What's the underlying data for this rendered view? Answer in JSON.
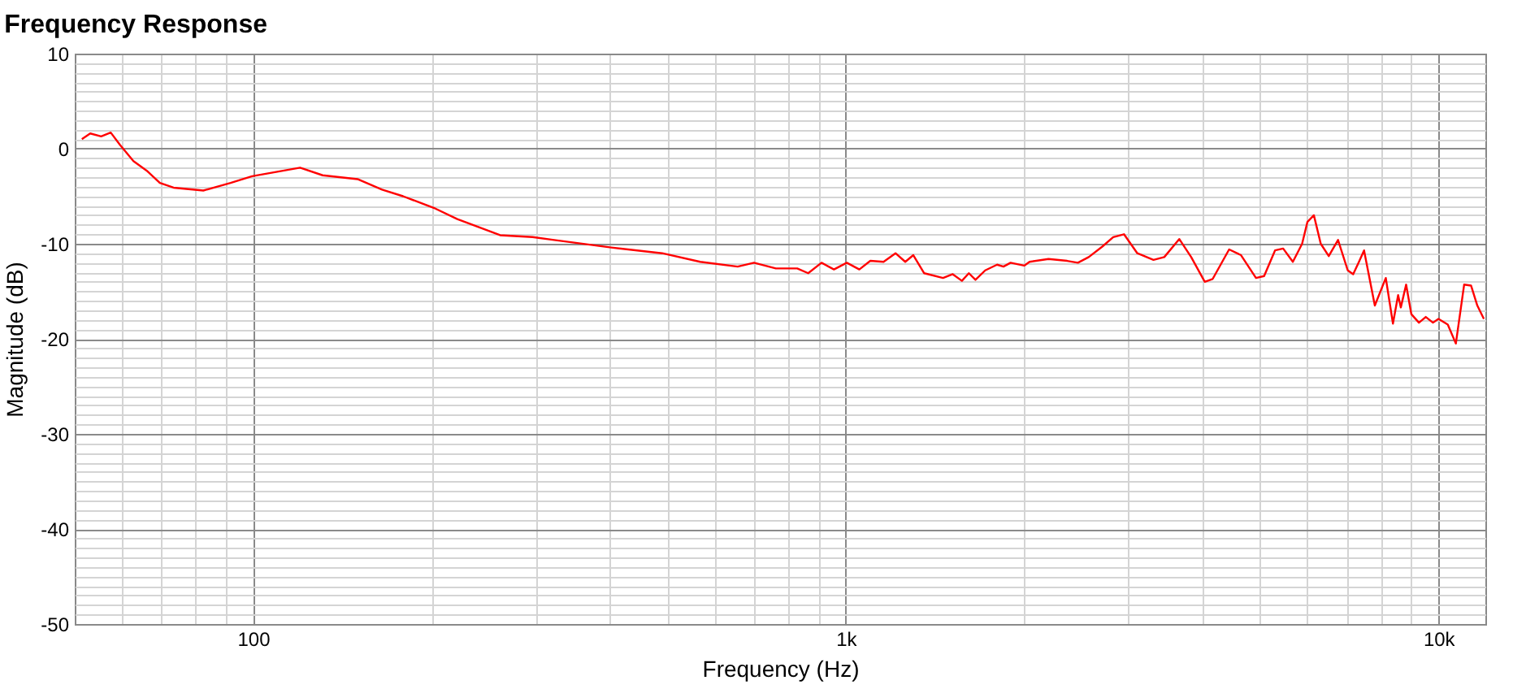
{
  "chart_data": {
    "type": "line",
    "title": "Frequency Response",
    "xlabel": "Frequency (Hz)",
    "ylabel": "Magnitude (dB)",
    "log": "x",
    "grid": true,
    "legend": false,
    "marker": "none",
    "line_style": "solid",
    "xlim": [
      50,
      12000
    ],
    "ylim": [
      -50,
      10
    ],
    "xticks": [
      {
        "value": 60,
        "label": null
      },
      {
        "value": 70,
        "label": null
      },
      {
        "value": 80,
        "label": null
      },
      {
        "value": 90,
        "label": null
      },
      100,
      {
        "value": 200,
        "label": null
      },
      {
        "value": 300,
        "label": null
      },
      {
        "value": 400,
        "label": null
      },
      {
        "value": 500,
        "label": null
      },
      {
        "value": 600,
        "label": null
      },
      {
        "value": 700,
        "label": null
      },
      {
        "value": 800,
        "label": null
      },
      {
        "value": 900,
        "label": null
      },
      {
        "value": 1000,
        "label": "1k"
      },
      {
        "value": 2000,
        "label": null
      },
      {
        "value": 3000,
        "label": null
      },
      {
        "value": 4000,
        "label": null
      },
      {
        "value": 5000,
        "label": null
      },
      {
        "value": 6000,
        "label": null
      },
      {
        "value": 7000,
        "label": null
      },
      {
        "value": 8000,
        "label": null
      },
      {
        "value": 9000,
        "label": null
      },
      {
        "value": 10000,
        "label": "10k"
      }
    ],
    "yticks": [
      -50,
      {
        "value": -49,
        "label": null
      },
      {
        "value": -48,
        "label": null
      },
      {
        "value": -47,
        "label": null
      },
      {
        "value": -46,
        "label": null
      },
      {
        "value": -45,
        "label": null
      },
      {
        "value": -44,
        "label": null
      },
      {
        "value": -43,
        "label": null
      },
      {
        "value": -42,
        "label": null
      },
      {
        "value": -41,
        "label": null
      },
      -40,
      {
        "value": -39,
        "label": null
      },
      {
        "value": -38,
        "label": null
      },
      {
        "value": -37,
        "label": null
      },
      {
        "value": -36,
        "label": null
      },
      {
        "value": -35,
        "label": null
      },
      {
        "value": -34,
        "label": null
      },
      {
        "value": -33,
        "label": null
      },
      {
        "value": -32,
        "label": null
      },
      {
        "value": -31,
        "label": null
      },
      -30,
      {
        "value": -29,
        "label": null
      },
      {
        "value": -28,
        "label": null
      },
      {
        "value": -27,
        "label": null
      },
      {
        "value": -26,
        "label": null
      },
      {
        "value": -25,
        "label": null
      },
      {
        "value": -24,
        "label": null
      },
      {
        "value": -23,
        "label": null
      },
      {
        "value": -22,
        "label": null
      },
      {
        "value": -21,
        "label": null
      },
      -20,
      {
        "value": -19,
        "label": null
      },
      {
        "value": -18,
        "label": null
      },
      {
        "value": -17,
        "label": null
      },
      {
        "value": -16,
        "label": null
      },
      {
        "value": -15,
        "label": null
      },
      {
        "value": -14,
        "label": null
      },
      {
        "value": -13,
        "label": null
      },
      {
        "value": -12,
        "label": null
      },
      {
        "value": -11,
        "label": null
      },
      -10,
      {
        "value": -9,
        "label": null
      },
      {
        "value": -8,
        "label": null
      },
      {
        "value": -7,
        "label": null
      },
      {
        "value": -6,
        "label": null
      },
      {
        "value": -5,
        "label": null
      },
      {
        "value": -4,
        "label": null
      },
      {
        "value": -3,
        "label": null
      },
      {
        "value": -2,
        "label": null
      },
      {
        "value": -1,
        "label": null
      },
      0,
      {
        "value": 1,
        "label": null
      },
      {
        "value": 2,
        "label": null
      },
      {
        "value": 3,
        "label": null
      },
      {
        "value": 4,
        "label": null
      },
      {
        "value": 5,
        "label": null
      },
      {
        "value": 6,
        "label": null
      },
      {
        "value": 7,
        "label": null
      },
      {
        "value": 8,
        "label": null
      },
      {
        "value": 9,
        "label": null
      },
      10
    ],
    "series": [
      {
        "color": "#ff0000",
        "x": [
          51.4,
          53.1,
          55.4,
          57.5,
          59.6,
          62.8,
          66.1,
          69.6,
          73.4,
          82.4,
          91.6,
          99.6,
          120,
          131,
          150,
          165,
          179,
          203,
          221,
          261,
          296,
          322,
          402,
          490,
          568,
          657,
          700,
          762,
          828,
          864,
          910,
          955,
          1004,
          1054,
          1100,
          1158,
          1213,
          1260,
          1300,
          1356,
          1459,
          1515,
          1570,
          1613,
          1655,
          1719,
          1800,
          1845,
          1897,
          2000,
          2042,
          2198,
          2363,
          2464,
          2570,
          2709,
          2826,
          2947,
          3104,
          3305,
          3447,
          3653,
          3826,
          4034,
          4160,
          4434,
          4644,
          4922,
          5080,
          5300,
          5470,
          5680,
          5888,
          6011,
          6163,
          6330,
          6530,
          6770,
          7030,
          7180,
          7330,
          7490,
          7810,
          8150,
          8380,
          8550,
          8640,
          8820,
          9000,
          9270,
          9520,
          9790,
          10000,
          10370,
          10700,
          11050,
          11350,
          11630,
          11930
        ],
        "values": [
          1.0,
          1.6,
          1.3,
          1.7,
          0.4,
          -1.3,
          -2.3,
          -3.6,
          -4.1,
          -4.4,
          -3.6,
          -2.9,
          -2.0,
          -2.8,
          -3.2,
          -4.3,
          -5.0,
          -6.3,
          -7.4,
          -9.1,
          -9.3,
          -9.6,
          -10.4,
          -11.0,
          -11.9,
          -12.4,
          -12.0,
          -12.6,
          -12.6,
          -13.1,
          -12.0,
          -12.7,
          -12.0,
          -12.7,
          -11.8,
          -11.9,
          -11.0,
          -11.9,
          -11.2,
          -13.1,
          -13.6,
          -13.2,
          -13.9,
          -13.1,
          -13.8,
          -12.8,
          -12.2,
          -12.4,
          -12.0,
          -12.3,
          -11.9,
          -11.6,
          -11.8,
          -12.0,
          -11.4,
          -10.3,
          -9.3,
          -9.0,
          -11.0,
          -11.7,
          -11.4,
          -9.5,
          -11.4,
          -14.0,
          -13.7,
          -10.6,
          -11.2,
          -13.6,
          -13.4,
          -10.7,
          -10.5,
          -11.9,
          -10.0,
          -7.7,
          -7.0,
          -10.0,
          -11.3,
          -9.6,
          -12.8,
          -13.2,
          -12.0,
          -10.7,
          -16.5,
          -13.6,
          -18.4,
          -15.4,
          -16.7,
          -14.3,
          -17.4,
          -18.3,
          -17.7,
          -18.3,
          -17.9,
          -18.5,
          -20.5,
          -14.3,
          -14.4,
          -16.5,
          -17.9
        ]
      }
    ]
  }
}
